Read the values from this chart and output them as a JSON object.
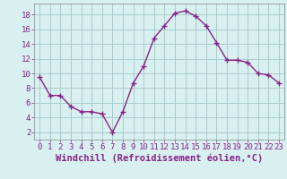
{
  "x": [
    0,
    1,
    2,
    3,
    4,
    5,
    6,
    7,
    8,
    9,
    10,
    11,
    12,
    13,
    14,
    15,
    16,
    17,
    18,
    19,
    20,
    21,
    22,
    23
  ],
  "y": [
    9.5,
    7.0,
    7.0,
    5.5,
    4.8,
    4.8,
    4.5,
    2.0,
    4.8,
    8.7,
    11.0,
    14.8,
    16.5,
    18.2,
    18.5,
    17.8,
    16.5,
    14.2,
    11.8,
    11.8,
    11.5,
    10.0,
    9.8,
    8.7
  ],
  "line_color": "#882288",
  "marker": "+",
  "marker_size": 4,
  "bg_color": "#d8f0f0",
  "grid_color": "#aacccc",
  "xlabel": "Windchill (Refroidissement éolien,°C)",
  "xlabel_color": "#882288",
  "xlabel_fontsize": 7.5,
  "yticks": [
    2,
    4,
    6,
    8,
    10,
    12,
    14,
    16,
    18
  ],
  "xticks": [
    0,
    1,
    2,
    3,
    4,
    5,
    6,
    7,
    8,
    9,
    10,
    11,
    12,
    13,
    14,
    15,
    16,
    17,
    18,
    19,
    20,
    21,
    22,
    23
  ],
  "ylim": [
    1.0,
    19.5
  ],
  "xlim": [
    -0.5,
    23.5
  ],
  "tick_color": "#882288",
  "tick_fontsize": 6.5,
  "spine_color": "#888888",
  "linewidth": 1.0
}
